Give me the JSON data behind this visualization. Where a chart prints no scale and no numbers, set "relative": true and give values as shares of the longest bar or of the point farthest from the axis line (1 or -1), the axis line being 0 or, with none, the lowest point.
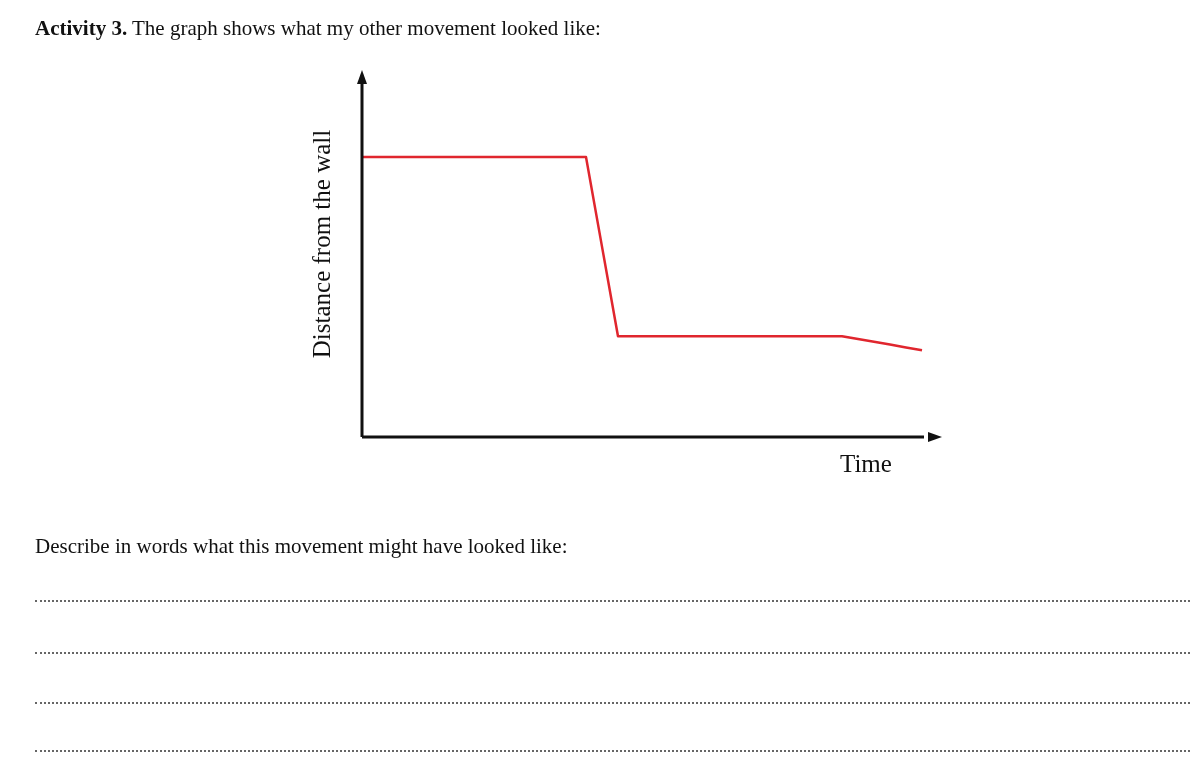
{
  "chart_data": {
    "type": "line",
    "title": "Activity 3. The graph shows what my other movement looked like:",
    "xlabel": "Time",
    "ylabel": "Distance from the wall",
    "annotations": [
      "Describe in words what this movement might have looked like:"
    ],
    "categories": [
      null,
      null,
      null,
      null,
      null,
      null,
      null,
      null,
      null,
      null,
      null,
      null,
      null,
      null,
      null,
      null,
      null,
      null,
      null,
      null,
      null,
      null,
      null,
      null,
      null,
      null,
      null,
      null,
      null,
      null,
      null,
      null,
      null,
      null,
      null,
      null
    ],
    "values": [
      1,
      1,
      1,
      1,
      1,
      1,
      1,
      1,
      1,
      1,
      1,
      1,
      1,
      1,
      1,
      0.68,
      0.36,
      0.36,
      0.36,
      0.36,
      0.36,
      0.36,
      0.36,
      0.36,
      0.36,
      0.36,
      0.36,
      0.36,
      0.36,
      0.36,
      0.36,
      0.35,
      0.34,
      0.33,
      0.32,
      0.31
    ],
    "color": "#e0262e",
    "relative": true,
    "tick_labels": false,
    "marker": "none",
    "line_style": "solid"
  }
}
